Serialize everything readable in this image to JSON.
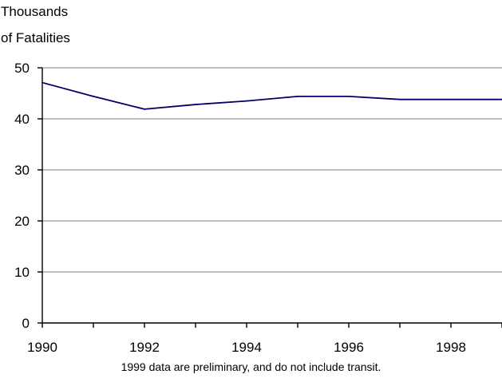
{
  "chart_data": {
    "type": "line",
    "ylabel_line1": "Thousands",
    "ylabel_line2": "of Fatalities",
    "xlabel": "",
    "x": [
      1990,
      1991,
      1992,
      1993,
      1994,
      1995,
      1996,
      1997,
      1998,
      1999
    ],
    "series": [
      {
        "values": [
          47.1,
          44.4,
          41.9,
          42.8,
          43.5,
          44.4,
          44.4,
          43.8,
          43.8,
          43.8
        ]
      }
    ],
    "xlim": [
      1990,
      1999
    ],
    "ylim": [
      0,
      50
    ],
    "yticks": [
      "0",
      "10",
      "20",
      "30",
      "40",
      "50"
    ],
    "xtick_labels": [
      "1990",
      "1992",
      "1994",
      "1996",
      "1998"
    ],
    "grid": "horizontal",
    "line_color": "#000066",
    "grid_color": "#999999",
    "footnote": "1999 data are preliminary, and do not include transit."
  }
}
